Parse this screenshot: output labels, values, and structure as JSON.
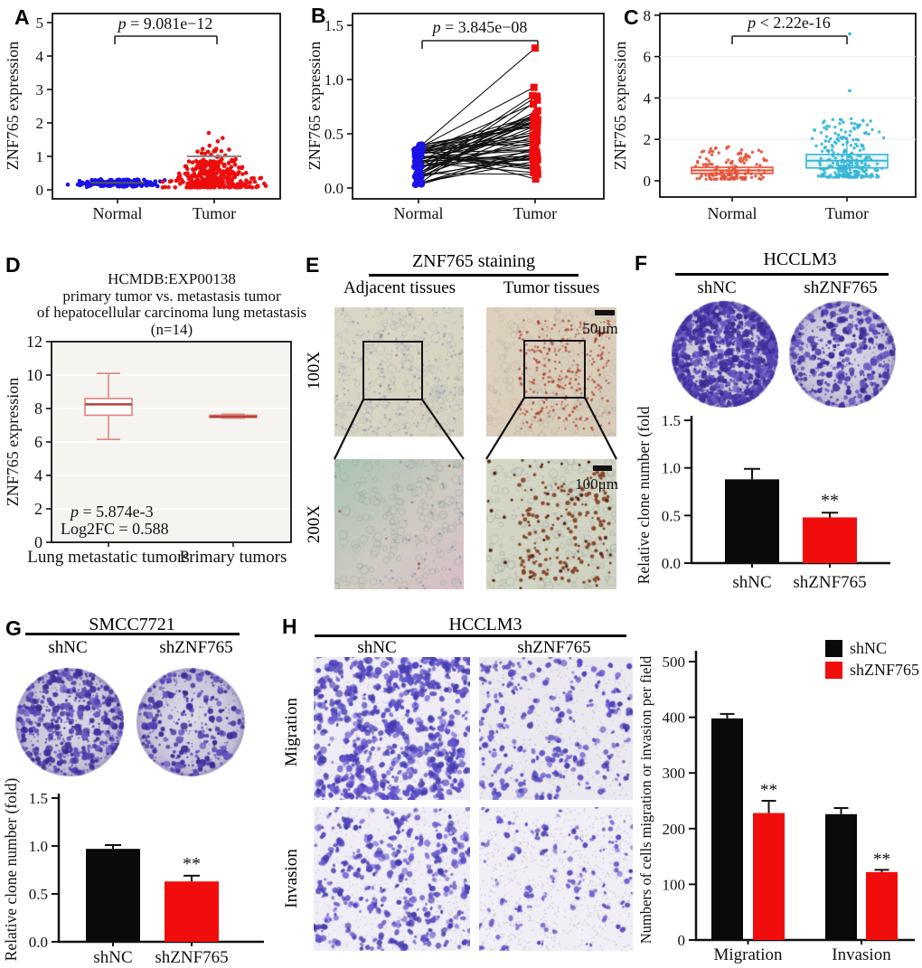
{
  "panels": {
    "A": {
      "label": "A"
    },
    "B": {
      "label": "B"
    },
    "C": {
      "label": "C"
    },
    "D": {
      "label": "D"
    },
    "E": {
      "label": "E",
      "title": "ZNF765 staining",
      "columns": [
        "Adjacent tissues",
        "Tumor tissues"
      ],
      "rows": [
        "100X",
        "200X"
      ],
      "scale_bars": [
        "50μm",
        "100μm"
      ]
    },
    "F": {
      "label": "F",
      "title": "HCCLM3",
      "columns": [
        "shNC",
        "shZNF765"
      ]
    },
    "G": {
      "label": "G",
      "title": "SMCC7721",
      "columns": [
        "shNC",
        "shZNF765"
      ]
    },
    "H": {
      "label": "H",
      "title": "HCCLM3",
      "columns": [
        "shNC",
        "shZNF765"
      ],
      "rows": [
        "Migration",
        "Invasion"
      ]
    }
  },
  "chart_data": [
    {
      "id": "A",
      "type": "strip",
      "ylabel": "ZNF765 expression",
      "ylim": [
        0,
        5
      ],
      "yticks": [
        0,
        1,
        2,
        3,
        4,
        5
      ],
      "p_label": "p = 9.081e−12",
      "categories": [
        "Normal",
        "Tumor"
      ],
      "groups": [
        {
          "name": "Normal",
          "color": "#1a12e6",
          "n": 220,
          "center": 0.2,
          "min": 0.04,
          "max": 0.42,
          "ref_line": 0.21
        },
        {
          "name": "Tumor",
          "color": "#ee0d0d",
          "n": 380,
          "center": 0.4,
          "min": 0.07,
          "max": 1.7,
          "ref_line": 1.0,
          "outliers": [
            1.7,
            1.55,
            1.45,
            1.32,
            1.22,
            1.15
          ]
        }
      ]
    },
    {
      "id": "B",
      "type": "paired",
      "ylabel": "ZNF765 expression",
      "ylim": [
        0,
        1.5
      ],
      "yticks": [
        0,
        0.5,
        1,
        1.5
      ],
      "ytick_labels": [
        "0.0",
        "0.5",
        "1.0",
        "1.5"
      ],
      "p_label": "p = 3.845e−08",
      "categories": [
        "Normal",
        "Tumor"
      ],
      "n_pairs": 52,
      "normal_range": [
        0.03,
        0.4
      ],
      "tumor_range": [
        0.08,
        0.93
      ],
      "outlier_pair": [
        0.37,
        1.29
      ],
      "colors": {
        "normal": "#1a12e6",
        "tumor": "#ee0d0d"
      }
    },
    {
      "id": "C",
      "type": "box_jitter",
      "ylabel": "ZNF765 expression",
      "ylim": [
        0,
        8
      ],
      "yticks": [
        0,
        2,
        4,
        6,
        8
      ],
      "p_label": "p < 2.22e-16",
      "categories": [
        "Normal",
        "Tumor"
      ],
      "groups": [
        {
          "name": "Normal",
          "color": "#e4533b",
          "n": 145,
          "box": {
            "lo": 0.12,
            "q1": 0.35,
            "median": 0.5,
            "q3": 0.65,
            "hi": 0.95
          },
          "jitter_max": 1.65
        },
        {
          "name": "Tumor",
          "color": "#36b6d6",
          "n": 265,
          "box": {
            "lo": 0.28,
            "q1": 0.62,
            "median": 0.97,
            "q3": 1.27,
            "hi": 1.9
          },
          "jitter_max": 3.0,
          "outliers": [
            4.35,
            7.1
          ]
        }
      ]
    },
    {
      "id": "D",
      "type": "box",
      "ylabel": "ZNF765 expression",
      "ylim": [
        0,
        12
      ],
      "yticks": [
        0,
        2,
        4,
        6,
        8,
        10,
        12
      ],
      "title_lines": [
        "HCMDB:EXP00138",
        "primary tumor vs. metastasis tumor",
        "of hepatocellular carcinoma lung metastasis",
        "(n=14)"
      ],
      "stats_lines": [
        "p = 5.874e-3",
        "Log2FC = 0.588"
      ],
      "categories": [
        "Lung metastatic tumors",
        "Primary tumors"
      ],
      "box_color": "#e0837c",
      "median_color": "#b0443c",
      "boxes": [
        {
          "lo": 6.15,
          "q1": 7.6,
          "median": 8.25,
          "q3": 8.6,
          "hi": 10.1
        },
        {
          "lo": 7.42,
          "q1": 7.46,
          "median": 7.52,
          "q3": 7.6,
          "hi": 7.66
        }
      ]
    },
    {
      "id": "F_bars",
      "type": "bar",
      "ylabel": "Relative clone number (fold)",
      "ylim": [
        0,
        1.5
      ],
      "ytick_labels": [
        "0.0",
        "0.5",
        "1.0",
        "1.5"
      ],
      "yticks": [
        0,
        0.5,
        1,
        1.5
      ],
      "categories": [
        "shNC",
        "shZNF765"
      ],
      "values": [
        0.88,
        0.48
      ],
      "errors": [
        0.11,
        0.05
      ],
      "colors": [
        "#0a0a0a",
        "#f20d0d"
      ],
      "sig": [
        "",
        "**"
      ]
    },
    {
      "id": "G_bars",
      "type": "bar",
      "ylabel": "Relative clone number (fold)",
      "ylim": [
        0,
        1.5
      ],
      "ytick_labels": [
        "0.0",
        "0.5",
        "1.0",
        "1.5"
      ],
      "yticks": [
        0,
        0.5,
        1,
        1.5
      ],
      "categories": [
        "shNC",
        "shZNF765"
      ],
      "values": [
        0.97,
        0.63
      ],
      "errors": [
        0.04,
        0.06
      ],
      "colors": [
        "#0a0a0a",
        "#f20d0d"
      ],
      "sig": [
        "",
        "**"
      ]
    },
    {
      "id": "H_bars",
      "type": "grouped_bar",
      "ylabel": "Numbers of cells migration or invasion per field",
      "ylim": [
        0,
        500
      ],
      "yticks": [
        0,
        100,
        200,
        300,
        400,
        500
      ],
      "categories": [
        "Migration",
        "Invasion"
      ],
      "series": [
        {
          "name": "shNC",
          "color": "#0a0a0a",
          "values": [
            398,
            226
          ],
          "errors": [
            8,
            11
          ],
          "sig": [
            "",
            ""
          ]
        },
        {
          "name": "shZNF765",
          "color": "#f20d0d",
          "values": [
            228,
            122
          ],
          "errors": [
            22,
            4
          ],
          "sig": [
            "**",
            "**"
          ]
        }
      ],
      "legend": [
        "shNC",
        "shZNF765"
      ],
      "legend_colors": [
        "#0a0a0a",
        "#f20d0d"
      ]
    }
  ]
}
